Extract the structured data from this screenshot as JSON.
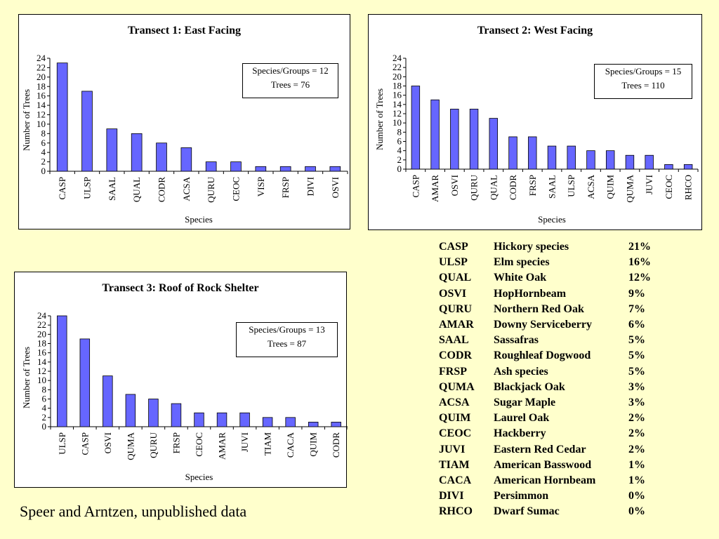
{
  "chart_data": [
    {
      "type": "bar",
      "title": "Transect 1: East Facing",
      "xlabel": "Species",
      "ylabel": "Number of Trees",
      "ylim": [
        0,
        24
      ],
      "yticks": [
        0,
        2,
        4,
        6,
        8,
        10,
        12,
        14,
        16,
        18,
        20,
        22,
        24
      ],
      "bar_color": "#6666ff",
      "stats": [
        "Species/Groups = 12",
        "Trees = 76"
      ],
      "categories": [
        "CASP",
        "ULSP",
        "SAAL",
        "QUAL",
        "CODR",
        "ACSA",
        "QURU",
        "CEOC",
        "VISP",
        "FRSP",
        "DIVI",
        "OSVI"
      ],
      "values": [
        23,
        17,
        9,
        8,
        6,
        5,
        2,
        2,
        1,
        1,
        1,
        1
      ]
    },
    {
      "type": "bar",
      "title": "Transect 2: West Facing",
      "xlabel": "Species",
      "ylabel": "Number of Trees",
      "ylim": [
        0,
        24
      ],
      "yticks": [
        0,
        2,
        4,
        6,
        8,
        10,
        12,
        14,
        16,
        18,
        20,
        22,
        24
      ],
      "bar_color": "#6666ff",
      "stats": [
        "Species/Groups = 15",
        "Trees = 110"
      ],
      "categories": [
        "CASP",
        "AMAR",
        "OSVI",
        "QURU",
        "QUAL",
        "CODR",
        "FRSP",
        "SAAL",
        "ULSP",
        "ACSA",
        "QUIM",
        "QUMA",
        "JUVI",
        "CEOC",
        "RHCO"
      ],
      "values": [
        18,
        15,
        13,
        13,
        11,
        7,
        7,
        5,
        5,
        4,
        4,
        3,
        3,
        1,
        1
      ]
    },
    {
      "type": "bar",
      "title": "Transect 3: Roof of Rock Shelter",
      "xlabel": "Species",
      "ylabel": "Number of Trees",
      "ylim": [
        0,
        24
      ],
      "yticks": [
        0,
        2,
        4,
        6,
        8,
        10,
        12,
        14,
        16,
        18,
        20,
        22,
        24
      ],
      "bar_color": "#6666ff",
      "stats": [
        "Species/Groups = 13",
        "Trees = 87"
      ],
      "categories": [
        "ULSP",
        "CASP",
        "OSVI",
        "QUMA",
        "QURU",
        "FRSP",
        "CEOC",
        "AMAR",
        "JUVI",
        "TIAM",
        "CACA",
        "QUIM",
        "CODR"
      ],
      "values": [
        24,
        19,
        11,
        7,
        6,
        5,
        3,
        3,
        3,
        2,
        2,
        1,
        1
      ]
    }
  ],
  "legend": [
    {
      "code": "CASP",
      "name": "Hickory species",
      "pct": "21%"
    },
    {
      "code": "ULSP",
      "name": "Elm species",
      "pct": "16%"
    },
    {
      "code": "QUAL",
      "name": "White Oak",
      "pct": "12%"
    },
    {
      "code": "OSVI",
      "name": "HopHornbeam",
      "pct": "9%"
    },
    {
      "code": "QURU",
      "name": "Northern Red Oak",
      "pct": "7%"
    },
    {
      "code": "AMAR",
      "name": "Downy Serviceberry",
      "pct": "6%"
    },
    {
      "code": "SAAL",
      "name": "Sassafras",
      "pct": "5%"
    },
    {
      "code": "CODR",
      "name": "Roughleaf Dogwood",
      "pct": "5%"
    },
    {
      "code": "FRSP",
      "name": "Ash species",
      "pct": "5%"
    },
    {
      "code": "QUMA",
      "name": "Blackjack Oak",
      "pct": "3%"
    },
    {
      "code": "ACSA",
      "name": "Sugar Maple",
      "pct": "3%"
    },
    {
      "code": "QUIM",
      "name": "Laurel Oak",
      "pct": "2%"
    },
    {
      "code": "CEOC",
      "name": "Hackberry",
      "pct": "2%"
    },
    {
      "code": "JUVI",
      "name": "Eastern Red Cedar",
      "pct": "2%"
    },
    {
      "code": "TIAM",
      "name": "American Basswood",
      "pct": "1%"
    },
    {
      "code": "CACA",
      "name": "American Hornbeam",
      "pct": "1%"
    },
    {
      "code": "DIVI",
      "name": "Persimmon",
      "pct": "0%"
    },
    {
      "code": "RHCO",
      "name": "Dwarf Sumac",
      "pct": "0%"
    }
  ],
  "source_note": "Speer and Arntzen, unpublished data"
}
